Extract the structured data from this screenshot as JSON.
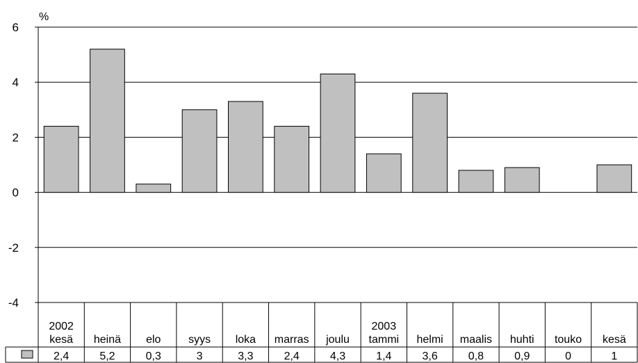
{
  "chart_data": {
    "type": "bar",
    "ylabel": "%",
    "ylim": [
      -4,
      6
    ],
    "yticks": [
      6,
      4,
      2,
      0,
      -2,
      -4
    ],
    "grid": true,
    "categories": [
      [
        "2002",
        "kesä"
      ],
      [
        "heinä"
      ],
      [
        "elo"
      ],
      [
        "syys"
      ],
      [
        "loka"
      ],
      [
        "marras"
      ],
      [
        "joulu"
      ],
      [
        "2003",
        "tammi"
      ],
      [
        "helmi"
      ],
      [
        "maalis"
      ],
      [
        "huhti"
      ],
      [
        "touko"
      ],
      [
        "kesä"
      ]
    ],
    "values": [
      2.4,
      5.2,
      0.3,
      3,
      3.3,
      2.4,
      4.3,
      1.4,
      3.6,
      0.8,
      0.9,
      0,
      1
    ],
    "value_labels": [
      "2,4",
      "5,2",
      "0,3",
      "3",
      "3,3",
      "2,4",
      "4,3",
      "1,4",
      "3,6",
      "0,8",
      "0,9",
      "0",
      "1"
    ],
    "bar_color": "#c0c0c0",
    "bar_stroke": "#000000",
    "data_table": true
  }
}
